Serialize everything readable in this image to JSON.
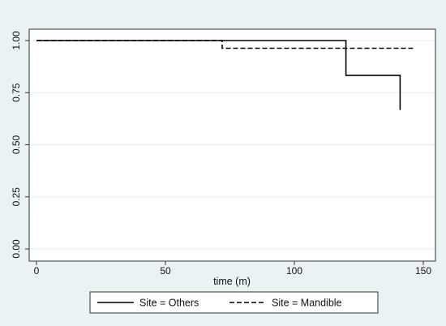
{
  "chart_data": {
    "type": "line",
    "title": "",
    "xlabel": "time (m)",
    "ylabel": "",
    "xlim": [
      0,
      150
    ],
    "ylim": [
      0,
      1
    ],
    "x_ticks": [
      0,
      50,
      100,
      150
    ],
    "x_tick_labels": [
      "0",
      "50",
      "100",
      "150"
    ],
    "y_ticks": [
      0,
      0.25,
      0.5,
      0.75,
      1
    ],
    "y_tick_labels": [
      "0.00",
      "0.25",
      "0.50",
      "0.75",
      "1.00"
    ],
    "grid": true,
    "legend_position": "bottom",
    "series": [
      {
        "name": "Site = Others",
        "line_style": "solid",
        "color": "#000000",
        "step": true,
        "points": [
          [
            0,
            1.0
          ],
          [
            120,
            1.0
          ],
          [
            120,
            0.833
          ],
          [
            141,
            0.833
          ],
          [
            141,
            0.667
          ]
        ]
      },
      {
        "name": "Site = Mandible",
        "line_style": "dashed",
        "color": "#000000",
        "step": true,
        "points": [
          [
            0,
            1.0
          ],
          [
            72,
            1.0
          ],
          [
            72,
            0.963
          ],
          [
            146,
            0.963
          ]
        ]
      }
    ]
  }
}
